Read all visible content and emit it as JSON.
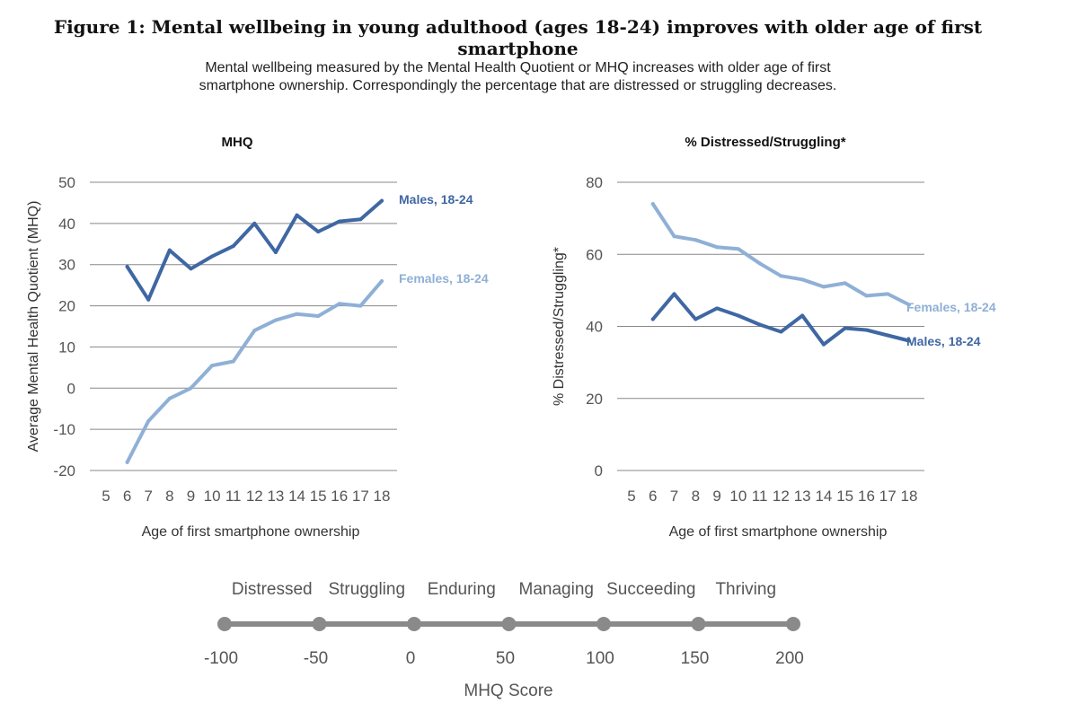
{
  "figure": {
    "title": "Figure 1:  Mental wellbeing in young adulthood (ages 18-24) improves with older age of first smartphone",
    "subtitle_line1": "Mental wellbeing measured by the Mental Health Quotient or MHQ increases with older age of first",
    "subtitle_line2": "smartphone ownership. Correspondingly the percentage that are distressed or struggling decreases."
  },
  "colors": {
    "males": "#3f67a3",
    "females": "#8fb0d6",
    "scale": "#8a8a8a"
  },
  "chart_data": [
    {
      "type": "line",
      "title": "MHQ",
      "xlabel": "Age of first smartphone ownership",
      "ylabel": "Average Mental Health Quotient (MHQ)",
      "xlim": [
        5,
        18
      ],
      "ylim": [
        -20,
        50
      ],
      "xticks": [
        5,
        6,
        7,
        8,
        9,
        10,
        11,
        12,
        13,
        14,
        15,
        16,
        17,
        18
      ],
      "yticks": [
        -20,
        -10,
        0,
        10,
        20,
        30,
        40,
        50
      ],
      "grid": true,
      "series": [
        {
          "name": "Males, 18-24",
          "color": "#3f67a3",
          "x": [
            6,
            7,
            8,
            9,
            10,
            11,
            12,
            13,
            14,
            15,
            16,
            17,
            18
          ],
          "y": [
            29.5,
            21.5,
            33.5,
            29,
            32,
            34.5,
            40,
            33,
            42,
            38,
            40.5,
            41,
            45.5
          ]
        },
        {
          "name": "Females, 18-24",
          "color": "#8fb0d6",
          "x": [
            6,
            7,
            8,
            9,
            10,
            11,
            12,
            13,
            14,
            15,
            16,
            17,
            18
          ],
          "y": [
            -18,
            -8,
            -2.5,
            0,
            5.5,
            6.5,
            14,
            16.5,
            18,
            17.5,
            20.5,
            20,
            26
          ]
        }
      ]
    },
    {
      "type": "line",
      "title": "% Distressed/Struggling*",
      "xlabel": "Age of first smartphone ownership",
      "ylabel": "% Distressed/Struggling*",
      "xlim": [
        5,
        18
      ],
      "ylim": [
        0,
        80
      ],
      "xticks": [
        5,
        6,
        7,
        8,
        9,
        10,
        11,
        12,
        13,
        14,
        15,
        16,
        17,
        18
      ],
      "yticks": [
        0,
        20,
        40,
        60,
        80
      ],
      "grid": true,
      "series": [
        {
          "name": "Females, 18-24",
          "color": "#8fb0d6",
          "x": [
            6,
            7,
            8,
            9,
            10,
            11,
            12,
            13,
            14,
            15,
            16,
            17,
            18
          ],
          "y": [
            74,
            65,
            64,
            62,
            61.5,
            57.5,
            54,
            53,
            51,
            52,
            48.5,
            49,
            46
          ]
        },
        {
          "name": "Males, 18-24",
          "color": "#3f67a3",
          "x": [
            6,
            7,
            8,
            9,
            10,
            11,
            12,
            13,
            14,
            15,
            16,
            17,
            18
          ],
          "y": [
            42,
            49,
            42,
            45,
            43,
            40.5,
            38.5,
            43,
            35,
            39.5,
            39,
            37.5,
            36
          ]
        }
      ]
    }
  ],
  "scale": {
    "xlabel": "MHQ Score",
    "ticks": [
      -100,
      -50,
      0,
      50,
      100,
      150,
      200
    ],
    "categories": [
      "Distressed",
      "Struggling",
      "Enduring",
      "Managing",
      "Succeeding",
      "Thriving"
    ]
  }
}
